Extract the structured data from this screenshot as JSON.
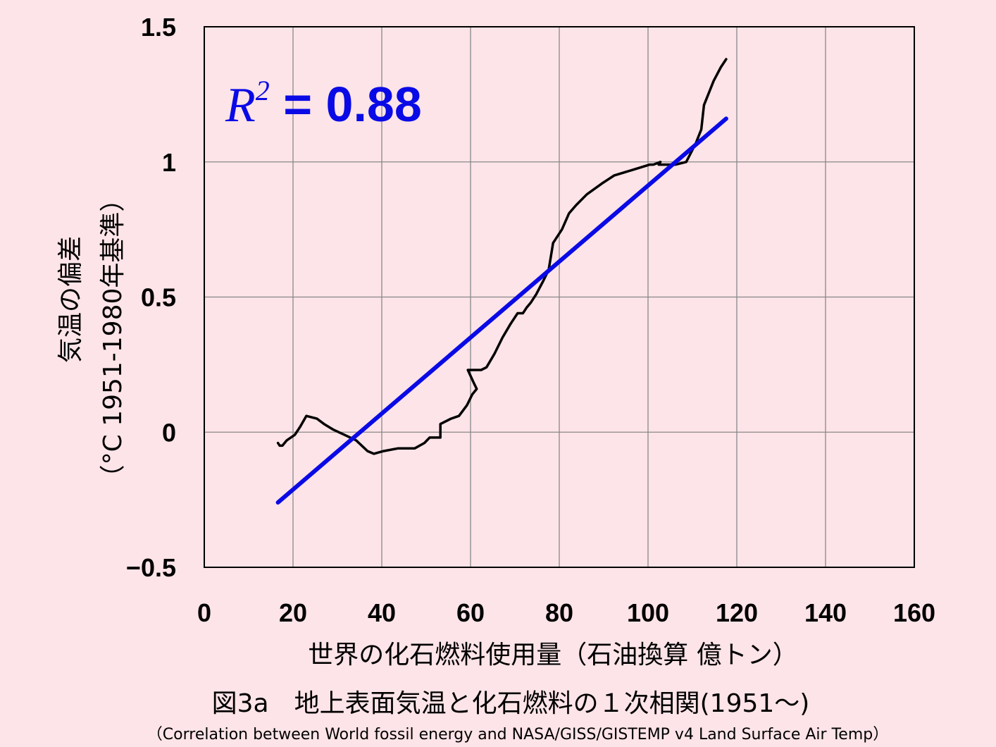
{
  "chart_data": {
    "type": "scatter",
    "xlabel": "世界の化石燃料使用量（石油換算 億トン）",
    "ylabel_line1": "気温の偏差",
    "ylabel_line2": "（°C  1951-1980年基準）",
    "xlim": [
      0,
      160
    ],
    "ylim": [
      -0.5,
      1.5
    ],
    "x_ticks": [
      0,
      20,
      40,
      60,
      80,
      100,
      120,
      140,
      160
    ],
    "y_ticks": [
      -0.5,
      0,
      0.5,
      1,
      1.5
    ],
    "x_tick_labels": [
      "0",
      "20",
      "40",
      "60",
      "80",
      "100",
      "120",
      "140",
      "160"
    ],
    "y_tick_labels": [
      "−0.5",
      "0",
      "0.5",
      "1",
      "1.5"
    ],
    "grid": true,
    "annotation": {
      "r": "R",
      "sup": "2",
      "rest": " = 0.88"
    },
    "series": [
      {
        "kind": "line",
        "color": "#000000",
        "x": [
          16.6,
          17.0,
          17.6,
          18.6,
          20.4,
          21.6,
          23.0,
          25.4,
          27.0,
          29.0,
          31.6,
          34.2,
          36.8,
          38.2,
          40.4,
          43.6,
          46.2,
          47.4,
          49.6,
          50.8,
          53.2,
          53.2,
          55.6,
          57.4,
          59.2,
          60.4,
          61.4,
          60.8,
          59.4,
          62.4,
          63.6,
          65.4,
          67.2,
          69.0,
          70.6,
          71.8,
          72.2,
          72.6,
          73.6,
          74.8,
          76.4,
          77.6,
          78.2,
          78.6,
          80.6,
          82.2,
          83.8,
          86.2,
          89.6,
          92.4,
          96.4,
          98.4,
          100.4,
          101.2,
          102.8,
          102.4,
          103.8,
          106.2,
          108.6,
          110.8,
          112.0,
          112.6,
          114.8,
          116.4,
          117.6
        ],
        "y": [
          -0.04,
          -0.05,
          -0.05,
          -0.03,
          -0.01,
          0.02,
          0.06,
          0.05,
          0.03,
          0.01,
          -0.01,
          -0.03,
          -0.07,
          -0.08,
          -0.07,
          -0.06,
          -0.06,
          -0.06,
          -0.04,
          -0.02,
          -0.02,
          0.03,
          0.05,
          0.06,
          0.1,
          0.14,
          0.16,
          0.18,
          0.23,
          0.23,
          0.24,
          0.29,
          0.35,
          0.4,
          0.44,
          0.44,
          0.45,
          0.46,
          0.48,
          0.51,
          0.56,
          0.6,
          0.66,
          0.7,
          0.75,
          0.81,
          0.84,
          0.88,
          0.92,
          0.95,
          0.97,
          0.98,
          0.99,
          0.99,
          1.0,
          0.99,
          0.99,
          0.99,
          1.0,
          1.07,
          1.12,
          1.21,
          1.3,
          1.35,
          1.38
        ]
      },
      {
        "kind": "trendline",
        "color": "#0a0ae6",
        "x": [
          16.6,
          117.6
        ],
        "y": [
          -0.26,
          1.16
        ]
      }
    ]
  },
  "caption": "図3a　地上表面気温と化石燃料の１次相関(1951〜)",
  "subcaption": "（Correlation between World fossil energy and NASA/GISS/GISTEMP v4 Land Surface Air Temp）"
}
